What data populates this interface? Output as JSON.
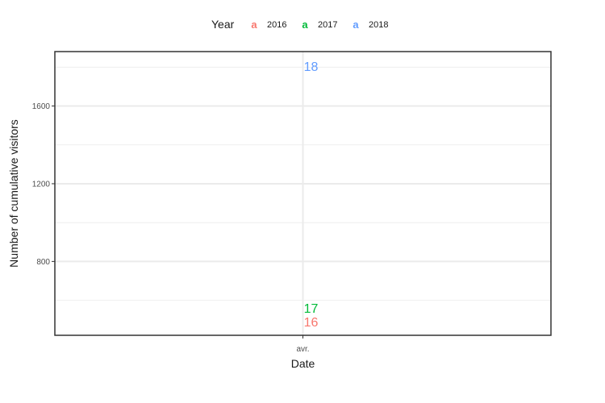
{
  "chart_data": {
    "type": "scatter",
    "x": [
      "avr."
    ],
    "xlabel": "Date",
    "ylabel": "Number of cumulative visitors",
    "yticks": [
      800,
      1200,
      1600
    ],
    "ylim": [
      420,
      1880
    ],
    "grid": true,
    "legend": {
      "title": "Year",
      "position": "top",
      "key_glyph": "a",
      "entries": [
        "2016",
        "2017",
        "2018"
      ]
    },
    "series": [
      {
        "name": "2016",
        "color": "#F8766D",
        "values": [
          490
        ],
        "labels": [
          "16"
        ]
      },
      {
        "name": "2017",
        "color": "#00BA38",
        "values": [
          560
        ],
        "labels": [
          "17"
        ]
      },
      {
        "name": "2018",
        "color": "#619CFF",
        "values": [
          1805
        ],
        "labels": [
          "18"
        ]
      }
    ]
  }
}
